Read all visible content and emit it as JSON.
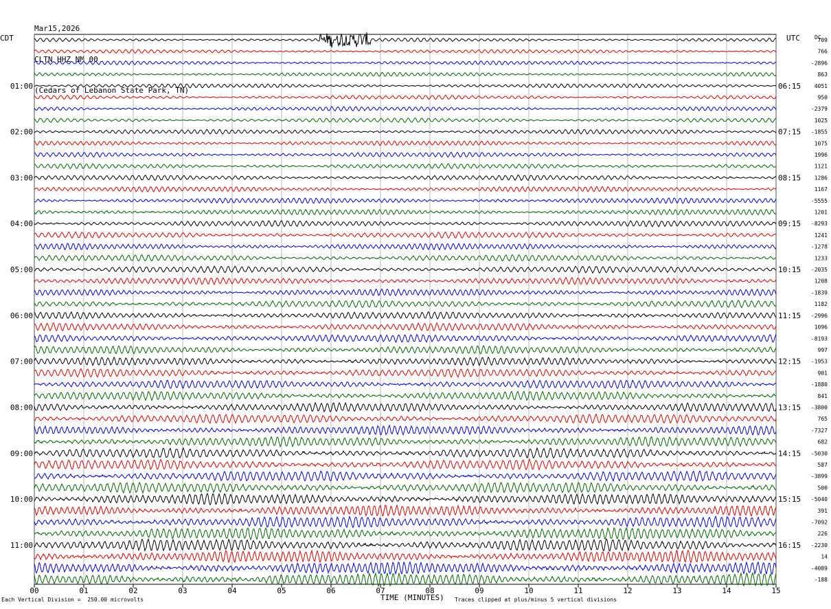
{
  "header": {
    "date": "Mar15,2026",
    "station": "CLTN HHZ NM 00",
    "location": "(Cedars of Lebanon State Park, TN)"
  },
  "left_tz": "CDT",
  "right_tz": "UTC",
  "dc_label": "DC",
  "footer": {
    "scale": "Each Vertical Division =  250.00 microvolts",
    "xlabel": "TIME (MINUTES)",
    "clip_note": "Traces clipped at plus/minus 5 vertical divisions"
  },
  "colors": {
    "trace_cycle": [
      "#000000",
      "#dd0000",
      "#0000dd",
      "#006600"
    ],
    "grid": "#888888"
  },
  "chart_data": {
    "type": "line",
    "title": "",
    "xlabel": "TIME (MINUTES)",
    "x_ticks": [
      "00",
      "01",
      "02",
      "03",
      "04",
      "05",
      "06",
      "07",
      "08",
      "09",
      "10",
      "11",
      "12",
      "13",
      "14",
      "15"
    ],
    "xlim": [
      0,
      15
    ],
    "traces_per_hour": 4,
    "trace_count": 48,
    "left_hour_labels": [
      "01:00",
      "02:00",
      "03:00",
      "04:00",
      "05:00",
      "06:00",
      "07:00",
      "08:00",
      "09:00",
      "10:00",
      "11:00"
    ],
    "right_hour_labels": [
      "06:15",
      "07:15",
      "08:15",
      "09:15",
      "10:15",
      "11:15",
      "12:15",
      "13:15",
      "14:15",
      "15:15",
      "16:15"
    ],
    "dc_offsets": [
      "709",
      "766",
      "-2896",
      "863",
      "4051",
      "950",
      "-2379",
      "1025",
      "-1855",
      "1075",
      "1996",
      "1121",
      "1286",
      "1167",
      "-5555",
      "1201",
      "-8293",
      "1241",
      "-1278",
      "1233",
      "-2035",
      "1208",
      "-1839",
      "1182",
      "-2996",
      "1096",
      "-8193",
      "997",
      "-1953",
      "901",
      "-1880",
      "841",
      "-3800",
      "765",
      "-7327",
      "682",
      "-5030",
      "587",
      "-3899",
      "500",
      "-5040",
      "391",
      "-7092",
      "226",
      "-2230",
      "14",
      "-4089",
      "-188"
    ]
  }
}
